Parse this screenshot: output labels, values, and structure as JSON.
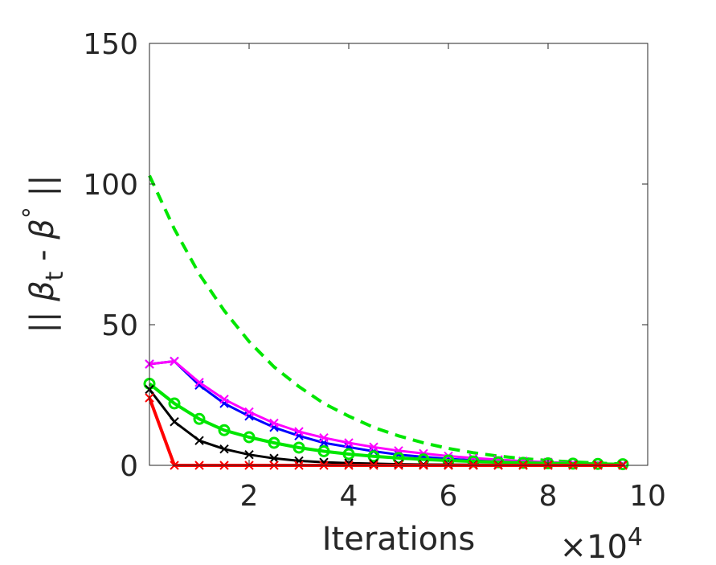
{
  "chart_data": {
    "type": "line",
    "title": "",
    "xlabel": "Iterations",
    "ylabel": "|| β_t - β° ||",
    "ylabel_parts": {
      "left": "|| ",
      "beta1": "β",
      "sub": "t",
      "mid": " - ",
      "beta2": "β",
      "sup": "°",
      "right": " ||"
    },
    "x_exponent_label": "×10",
    "x_exponent_power": "4",
    "xlim": [
      0,
      10
    ],
    "ylim": [
      0,
      150
    ],
    "xticks": [
      2,
      4,
      6,
      8,
      10
    ],
    "yticks": [
      0,
      50,
      100,
      150
    ],
    "xtick_labels": [
      "2",
      "4",
      "6",
      "8",
      "10"
    ],
    "ytick_labels": [
      "0",
      "50",
      "100",
      "150"
    ],
    "grid": false,
    "series": [
      {
        "color": "#00e600",
        "style": "dashed",
        "marker": "none",
        "width": 4,
        "x": [
          0,
          0.5,
          1,
          1.5,
          2,
          2.5,
          3,
          3.5,
          4,
          4.5,
          5,
          5.5,
          6,
          6.5,
          7,
          7.5,
          8,
          8.5,
          9,
          9.5
        ],
        "values": [
          103,
          84,
          68,
          55,
          44,
          35,
          28,
          22,
          17.5,
          13.5,
          10.5,
          8,
          6,
          4.5,
          3.3,
          2.4,
          1.7,
          1.2,
          0.8,
          0.5
        ]
      },
      {
        "color": "#0000ff",
        "style": "solid",
        "marker": "x",
        "width": 3,
        "x": [
          0,
          0.5,
          1,
          1.5,
          2,
          2.5,
          3,
          3.5,
          4,
          4.5,
          5,
          5.5,
          6,
          6.5,
          7,
          7.5,
          8,
          8.5,
          9,
          9.5
        ],
        "values": [
          36,
          37,
          28.5,
          22,
          17.5,
          13.5,
          10.5,
          8,
          6.5,
          5,
          3.8,
          3,
          2.3,
          1.8,
          1.4,
          1.1,
          0.9,
          0.7,
          0.5,
          0.4
        ]
      },
      {
        "color": "#ff00ff",
        "style": "solid",
        "marker": "x",
        "width": 3,
        "x": [
          0,
          0.5,
          1,
          1.5,
          2,
          2.5,
          3,
          3.5,
          4,
          4.5,
          5,
          5.5,
          6,
          6.5,
          7,
          7.5,
          8,
          8.5,
          9,
          9.5
        ],
        "values": [
          36,
          37,
          29.5,
          23.5,
          19,
          15,
          12,
          9.8,
          8,
          6.5,
          5.2,
          4.2,
          3.3,
          2.6,
          2,
          1.5,
          1.1,
          0.8,
          0.6,
          0.4
        ]
      },
      {
        "color": "#00e600",
        "style": "solid",
        "marker": "o",
        "width": 4,
        "x": [
          0,
          0.5,
          1,
          1.5,
          2,
          2.5,
          3,
          3.5,
          4,
          4.5,
          5,
          5.5,
          6,
          6.5,
          7,
          7.5,
          8,
          8.5,
          9,
          9.5
        ],
        "values": [
          29,
          22,
          16.5,
          12.5,
          10,
          8,
          6.3,
          5,
          4,
          3.2,
          2.6,
          2.1,
          1.7,
          1.4,
          1.1,
          0.9,
          0.7,
          0.6,
          0.5,
          0.4
        ]
      },
      {
        "color": "#000000",
        "style": "solid",
        "marker": "x",
        "width": 3,
        "x": [
          0,
          0.5,
          1,
          1.5,
          2,
          2.5,
          3,
          3.5,
          4,
          4.5,
          5,
          5.5,
          6,
          6.5,
          7,
          7.5,
          8,
          8.5,
          9,
          9.5
        ],
        "values": [
          27,
          15.5,
          8.8,
          5.8,
          3.8,
          2.5,
          1.6,
          1.1,
          0.8,
          0.6,
          0.4,
          0.3,
          0.25,
          0.2,
          0.15,
          0.1,
          0.1,
          0.1,
          0.1,
          0.1
        ]
      },
      {
        "color": "#ff0000",
        "style": "solid",
        "marker": "x",
        "width": 4,
        "x": [
          0,
          0.5,
          1,
          1.5,
          2,
          2.5,
          3,
          3.5,
          4,
          4.5,
          5,
          5.5,
          6,
          6.5,
          7,
          7.5,
          8,
          8.5,
          9,
          9.5
        ],
        "values": [
          24,
          0,
          0,
          0,
          0,
          0,
          0,
          0,
          0,
          0,
          0,
          0,
          0,
          0,
          0,
          0,
          0,
          0,
          0,
          0
        ]
      }
    ]
  }
}
